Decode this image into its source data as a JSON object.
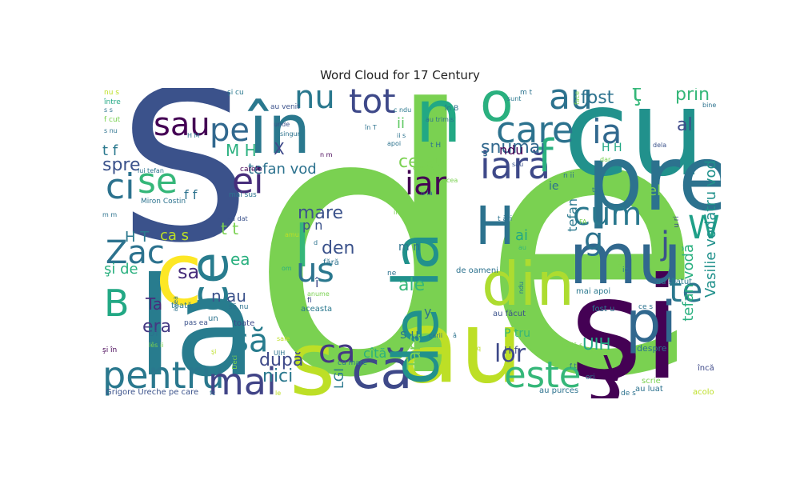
{
  "title": "Word Cloud for 17 Century",
  "words": [
    {
      "text": "de",
      "color": "#7ad151"
    },
    {
      "text": "S",
      "color": "#3b528b"
    },
    {
      "text": "în",
      "color": "#2a788e"
    },
    {
      "text": "cu",
      "color": "#21918c"
    },
    {
      "text": "la",
      "color": "#287c8e"
    },
    {
      "text": "şi",
      "color": "#440154"
    },
    {
      "text": "au",
      "color": "#bddf26"
    },
    {
      "text": "pre",
      "color": "#2c728e"
    },
    {
      "text": "mu",
      "color": "#31688e"
    },
    {
      "text": "s",
      "color": "#bddf26"
    },
    {
      "text": "că",
      "color": "#3e4989"
    },
    {
      "text": "n",
      "color": "#22a884"
    },
    {
      "text": "o",
      "color": "#2ab07f"
    },
    {
      "text": "c",
      "color": "#fde725"
    },
    {
      "text": "ce",
      "color": "#287c8e"
    },
    {
      "text": "de la",
      "color": "#21918c"
    },
    {
      "text": "din",
      "color": "#addc30"
    },
    {
      "text": "H",
      "color": "#2c728e"
    },
    {
      "text": "pentru",
      "color": "#2a788e"
    },
    {
      "text": "mai",
      "color": "#414487"
    },
    {
      "text": "este",
      "color": "#35b779"
    },
    {
      "text": "care",
      "color": "#2c728e"
    },
    {
      "text": "iară",
      "color": "#3e4989"
    },
    {
      "text": "f",
      "color": "#2ab07f"
    },
    {
      "text": "au",
      "color": "#2c728e"
    },
    {
      "text": "tot",
      "color": "#3e4989"
    },
    {
      "text": "nu",
      "color": "#2a788e"
    },
    {
      "text": "sau",
      "color": "#440154"
    },
    {
      "text": "pe",
      "color": "#31688e"
    },
    {
      "text": "l",
      "color": "#35b779"
    },
    {
      "text": "ei",
      "color": "#472d7b"
    },
    {
      "text": "se",
      "color": "#35b779"
    },
    {
      "text": "ci",
      "color": "#2c728e"
    },
    {
      "text": "Zac",
      "color": "#2c728e"
    },
    {
      "text": "ca",
      "color": "#443983"
    },
    {
      "text": "să",
      "color": "#287c8e"
    },
    {
      "text": "B",
      "color": "#22a884"
    },
    {
      "text": "u",
      "color": "#2c728e"
    },
    {
      "text": "s",
      "color": "#2a788e"
    },
    {
      "text": "pi",
      "color": "#31688e"
    },
    {
      "text": "V",
      "color": "#440154"
    },
    {
      "text": "te",
      "color": "#2a788e"
    },
    {
      "text": "ia",
      "color": "#31688e"
    },
    {
      "text": "cum",
      "color": "#2a788e"
    },
    {
      "text": "W",
      "color": "#1fa088"
    },
    {
      "text": "g",
      "color": "#2c728e"
    },
    {
      "text": "j",
      "color": "#3b528b"
    },
    {
      "text": "iar",
      "color": "#440154"
    },
    {
      "text": "ce au",
      "color": "#7ad151"
    },
    {
      "text": "tefan vod",
      "color": "#2c728e"
    },
    {
      "text": "prin",
      "color": "#35b779"
    },
    {
      "text": "al",
      "color": "#3e4989"
    },
    {
      "text": "fost",
      "color": "#2c728e"
    },
    {
      "text": "ţ",
      "color": "#35b779"
    },
    {
      "text": "şnumai",
      "color": "#31688e"
    },
    {
      "text": "lor",
      "color": "#3e4989"
    },
    {
      "text": "după",
      "color": "#3e4989"
    },
    {
      "text": "nici",
      "color": "#2a788e"
    },
    {
      "text": "UIH",
      "color": "#22a884"
    },
    {
      "text": "Vasilie vodătru vod",
      "color": "#21918c"
    },
    {
      "text": "tefan vodă",
      "color": "#2ab07f"
    },
    {
      "text": "mare",
      "color": "#3b528b"
    },
    {
      "text": "den",
      "color": "#3b528b"
    },
    {
      "text": "ale",
      "color": "#35b779"
    },
    {
      "text": "ai",
      "color": "#22a884"
    },
    {
      "text": "el",
      "color": "#7ad151"
    },
    {
      "text": "spre",
      "color": "#3b528b"
    },
    {
      "text": "ea",
      "color": "#2ab07f"
    },
    {
      "text": "sa",
      "color": "#472d7b"
    },
    {
      "text": "era",
      "color": "#443983"
    },
    {
      "text": "Ta",
      "color": "#472d7b"
    },
    {
      "text": "ii",
      "color": "#5ec962"
    },
    {
      "text": "X",
      "color": "#3e4989"
    },
    {
      "text": "M H",
      "color": "#2ab07f"
    },
    {
      "text": "H T",
      "color": "#2a788e"
    },
    {
      "text": "ca s",
      "color": "#bddf26"
    },
    {
      "text": "şi de",
      "color": "#2ab07f"
    },
    {
      "text": "n au",
      "color": "#3b528b"
    },
    {
      "text": "t f",
      "color": "#2a788e"
    },
    {
      "text": "Grigore Ureche pe care",
      "color": "#3b528b"
    },
    {
      "text": "Miron Costin",
      "color": "#2c728e"
    },
    {
      "text": "lui tefan",
      "color": "#2c728e"
    },
    {
      "text": "cîtă",
      "color": "#2ab07f"
    },
    {
      "text": "Tara",
      "color": "#7ad151"
    },
    {
      "text": "LGI",
      "color": "#2a788e"
    },
    {
      "text": "fără",
      "color": "#2c728e"
    },
    {
      "text": "toate",
      "color": "#3e4989"
    },
    {
      "text": "toată",
      "color": "#2a788e"
    },
    {
      "text": "despre",
      "color": "#2c728e"
    },
    {
      "text": "au făcut",
      "color": "#3b528b"
    },
    {
      "text": "au purces",
      "color": "#2c728e"
    },
    {
      "text": "de oameni",
      "color": "#2c728e"
    },
    {
      "text": "au statut",
      "color": "#2a788e"
    },
    {
      "text": "mai apoi",
      "color": "#2a788e"
    },
    {
      "text": "fost u",
      "color": "#2a788e"
    },
    {
      "text": "au luat",
      "color": "#2c728e"
    },
    {
      "text": "acolo",
      "color": "#bddf26"
    },
    {
      "text": "încă",
      "color": "#3e4989"
    },
    {
      "text": "scrie",
      "color": "#7ad151"
    },
    {
      "text": "ori",
      "color": "#2c728e"
    },
    {
      "text": "aceasta",
      "color": "#2a788e"
    },
    {
      "text": "pas ea",
      "color": "#3b528b"
    },
    {
      "text": "sunt",
      "color": "#2a788e"
    },
    {
      "text": "bine",
      "color": "#2c728e"
    },
    {
      "text": "dela",
      "color": "#3b528b"
    },
    {
      "text": "singur",
      "color": "#2c728e"
    },
    {
      "text": "unde",
      "color": "#3b528b"
    },
    {
      "text": "au venit",
      "color": "#3b528b"
    },
    {
      "text": "au trimis",
      "color": "#2c728e"
    },
    {
      "text": "carele",
      "color": "#440154"
    },
    {
      "text": "mai sus",
      "color": "#2c728e"
    },
    {
      "text": "sâu",
      "color": "#3b528b"
    },
    {
      "text": "dar",
      "color": "#7ad151"
    },
    {
      "text": "apoi",
      "color": "#2c728e"
    },
    {
      "text": "cu mare",
      "color": "#2a788e"
    },
    {
      "text": "carii",
      "color": "#2c728e"
    },
    {
      "text": "au dat",
      "color": "#3b528b"
    },
    {
      "text": "între",
      "color": "#22a884"
    },
    {
      "text": "nu s",
      "color": "#bddf26"
    },
    {
      "text": "şi cu",
      "color": "#2a788e"
    },
    {
      "text": "şi în",
      "color": "#440154"
    },
    {
      "text": "sale",
      "color": "#bddf26"
    },
    {
      "text": "UJH",
      "color": "#2c728e"
    },
    {
      "text": "avea",
      "color": "#2c728e"
    },
    {
      "text": "Deci",
      "color": "#7ad151"
    },
    {
      "text": "le",
      "color": "#bddf26"
    },
    {
      "text": "de s",
      "color": "#2c728e"
    },
    {
      "text": "vodă s",
      "color": "#7ad151"
    },
    {
      "text": "P tru",
      "color": "#35b779"
    },
    {
      "text": "H f",
      "color": "#3e4989"
    },
    {
      "text": "H H",
      "color": "#22a884"
    },
    {
      "text": "t ări",
      "color": "#2c728e"
    },
    {
      "text": "ie",
      "color": "#2c728e"
    },
    {
      "text": "ndu",
      "color": "#2a788e"
    },
    {
      "text": "ic",
      "color": "#2a788e"
    },
    {
      "text": "să nu",
      "color": "#2c728e"
    },
    {
      "text": "y",
      "color": "#2c728e"
    },
    {
      "text": "î",
      "color": "#3e4989"
    },
    {
      "text": "u la",
      "color": "#2c728e"
    },
    {
      "text": "ile",
      "color": "#7ad151"
    },
    {
      "text": "cea",
      "color": "#7ad151"
    },
    {
      "text": "anume",
      "color": "#7ad151"
    },
    {
      "text": "fi",
      "color": "#3e4989"
    },
    {
      "text": "om",
      "color": "#2ab07f"
    },
    {
      "text": "amu",
      "color": "#bddf26"
    },
    {
      "text": "un",
      "color": "#2c728e"
    },
    {
      "text": "lês ii",
      "color": "#7ad151"
    },
    {
      "text": "ne",
      "color": "#2c728e"
    },
    {
      "text": "asupra",
      "color": "#7ad151"
    },
    {
      "text": "face",
      "color": "#7ad151"
    },
    {
      "text": "ce s",
      "color": "#2c728e"
    },
    {
      "text": "au",
      "color": "#35b779"
    },
    {
      "text": "OT",
      "color": "#2c728e"
    },
    {
      "text": "f cut",
      "color": "#7ad151"
    },
    {
      "text": "s nu",
      "color": "#2c728e"
    },
    {
      "text": "H M",
      "color": "#2c728e"
    },
    {
      "text": "n m",
      "color": "#440154"
    },
    {
      "text": "m m",
      "color": "#2c728e"
    },
    {
      "text": "p n",
      "color": "#3b528b"
    },
    {
      "text": "m n",
      "color": "#2c728e"
    },
    {
      "text": "s u",
      "color": "#2a788e"
    },
    {
      "text": "t t",
      "color": "#7ad151"
    },
    {
      "text": "f f",
      "color": "#2c728e"
    },
    {
      "text": "tefan",
      "color": "#2a788e"
    },
    {
      "text": "ndu",
      "color": "#440154"
    },
    {
      "text": "c ndu",
      "color": "#2a788e"
    },
    {
      "text": "în B",
      "color": "#2c728e"
    },
    {
      "text": "în T",
      "color": "#2c728e"
    },
    {
      "text": "t H",
      "color": "#2c728e"
    },
    {
      "text": "ii s",
      "color": "#2c728e"
    },
    {
      "text": "t n",
      "color": "#2c728e"
    },
    {
      "text": "n ii",
      "color": "#2c728e"
    },
    {
      "text": "m t",
      "color": "#2c728e"
    },
    {
      "text": "l M",
      "color": "#7ad151"
    },
    {
      "text": "u ri",
      "color": "#3e4989"
    },
    {
      "text": "FA",
      "color": "#7ad151"
    },
    {
      "text": "s s",
      "color": "#2c728e"
    },
    {
      "text": "f t",
      "color": "#2c728e"
    },
    {
      "text": "q",
      "color": "#bddf26"
    },
    {
      "text": "â",
      "color": "#2c728e"
    },
    {
      "text": "fc",
      "color": "#2c728e"
    },
    {
      "text": "şi",
      "color": "#bddf26"
    },
    {
      "text": "d",
      "color": "#2c728e"
    }
  ]
}
